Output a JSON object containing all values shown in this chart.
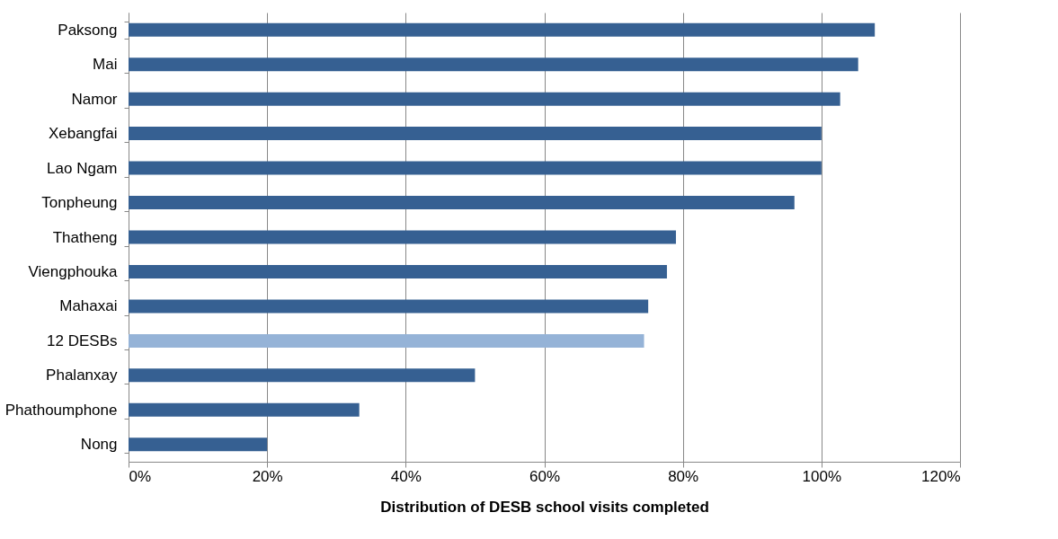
{
  "chart_data": {
    "type": "bar",
    "orientation": "horizontal",
    "xlabel": "Distribution of DESB school visits completed",
    "categories": [
      "Paksong",
      "Mai",
      "Namor",
      "Xebangfai",
      "Lao Ngam",
      "Tonpheung",
      "Thatheng",
      "Viengphouka",
      "Mahaxai",
      "12 DESBs",
      "Phalanxay",
      "Phathoumphone",
      "Nong"
    ],
    "values": [
      107.7,
      105.3,
      102.7,
      100,
      100,
      96.1,
      79.0,
      77.7,
      75.0,
      74.4,
      50,
      33.3,
      20
    ],
    "colors": [
      "#366092",
      "#366092",
      "#366092",
      "#366092",
      "#366092",
      "#366092",
      "#366092",
      "#366092",
      "#366092",
      "#95b3d7",
      "#366092",
      "#366092",
      "#366092"
    ],
    "xlim": [
      0,
      120
    ],
    "xticks": [
      {
        "value": 0,
        "label": "0%"
      },
      {
        "value": 20,
        "label": "20%"
      },
      {
        "value": 40,
        "label": "40%"
      },
      {
        "value": 60,
        "label": "60%"
      },
      {
        "value": 80,
        "label": "80%"
      },
      {
        "value": 100,
        "label": "100%"
      },
      {
        "value": 120,
        "label": "120%"
      }
    ],
    "grid": "x",
    "legend": false
  }
}
